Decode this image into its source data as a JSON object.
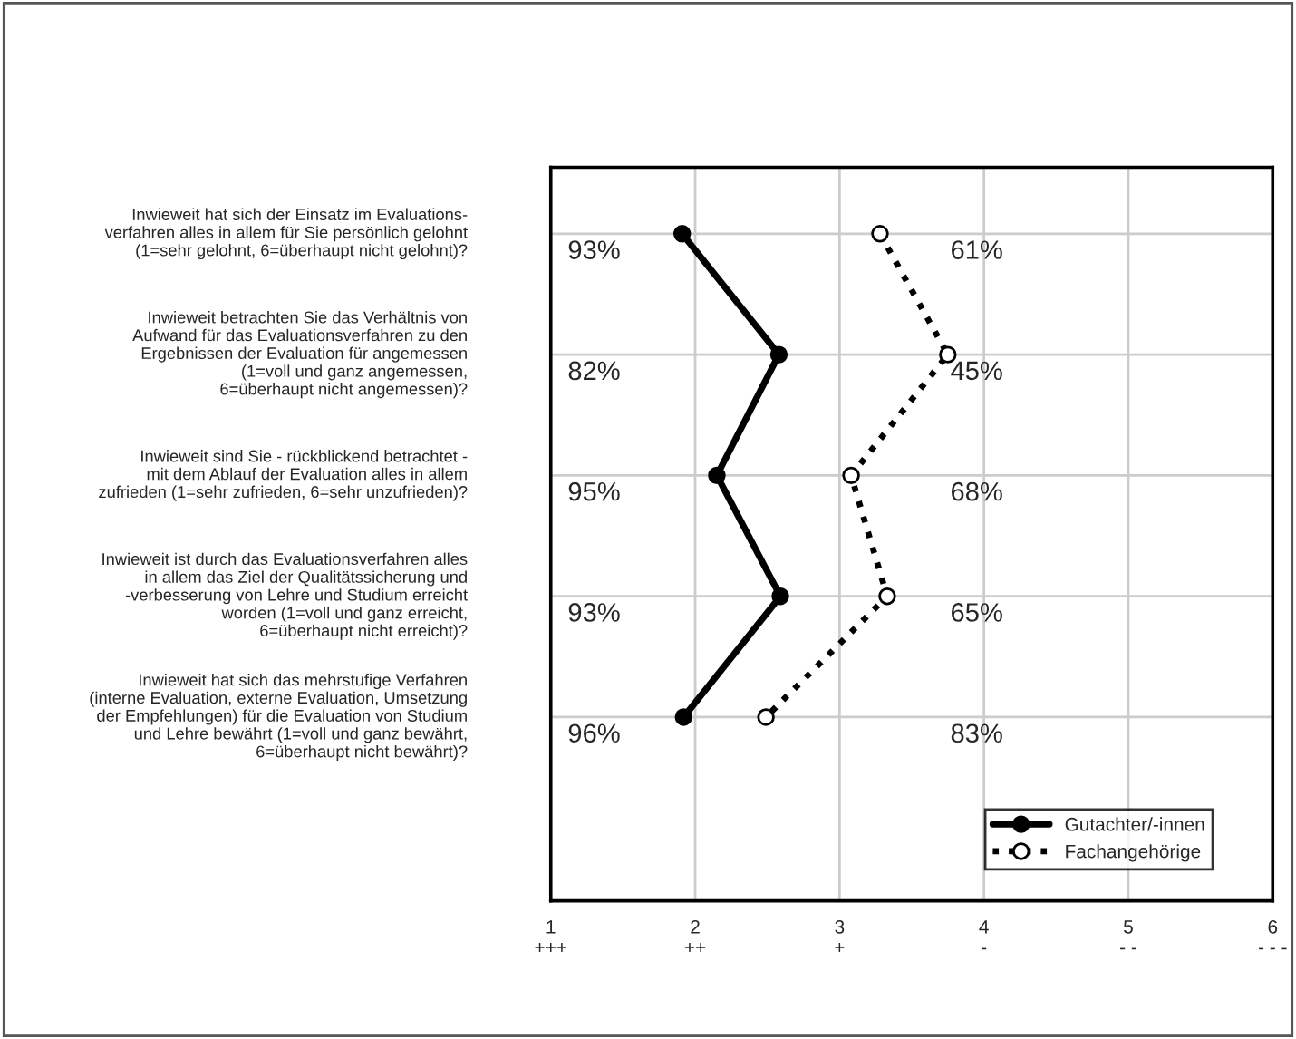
{
  "chart_data": {
    "type": "line",
    "orientation": "horizontal",
    "categories": [
      "Inwieweit hat sich der Einsatz im Evaluations-\nverfahren alles in allem für Sie persönlich gelohnt\n(1=sehr gelohnt, 6=überhaupt nicht gelohnt)?",
      "Inwieweit betrachten Sie das Verhältnis von\nAufwand für das Evaluationsverfahren zu den\nErgebnissen der Evaluation für angemessen\n(1=voll und ganz angemessen,\n6=überhaupt nicht angemessen)?",
      "Inwieweit sind Sie - rückblickend betrachtet -\nmit dem Ablauf der Evaluation alles in allem\nzufrieden (1=sehr zufrieden, 6=sehr unzufrieden)?",
      "Inwieweit ist durch das Evaluationsverfahren alles\nin allem das Ziel der Qualitätssicherung und\n-verbesserung von Lehre und Studium erreicht\nworden (1=voll und ganz erreicht,\n6=überhaupt nicht erreicht)?",
      "Inwieweit hat sich das mehrstufige Verfahren\n(interne Evaluation, externe Evaluation, Umsetzung\nder Empfehlungen) für die Evaluation von Studium\nund Lehre bewährt (1=voll und ganz bewährt,\n6=überhaupt nicht bewährt)?"
    ],
    "series": [
      {
        "name": "Gutachter/-innen",
        "color": "#000000",
        "line_style": "solid",
        "values": [
          1.91,
          2.58,
          2.15,
          2.59,
          1.92
        ]
      },
      {
        "name": "Fachangehörige",
        "color": "#000000",
        "line_style": "dotted",
        "values": [
          3.28,
          3.75,
          3.08,
          3.33,
          2.49
        ]
      }
    ],
    "xlim": [
      1,
      6
    ],
    "xticks": [
      {
        "value": 1,
        "label": "1\n+++"
      },
      {
        "value": 2,
        "label": "2\n++"
      },
      {
        "value": 3,
        "label": "3\n+"
      },
      {
        "value": 4,
        "label": "4\n-"
      },
      {
        "value": 5,
        "label": "5\n- -"
      },
      {
        "value": 6,
        "label": "6\n- - -"
      }
    ],
    "marker": "circle",
    "grid": true,
    "legend": "bottom right",
    "annotations": [
      "93%",
      "82%",
      "95%",
      "93%",
      "96%",
      "61%",
      "45%",
      "68%",
      "65%",
      "83%"
    ]
  }
}
